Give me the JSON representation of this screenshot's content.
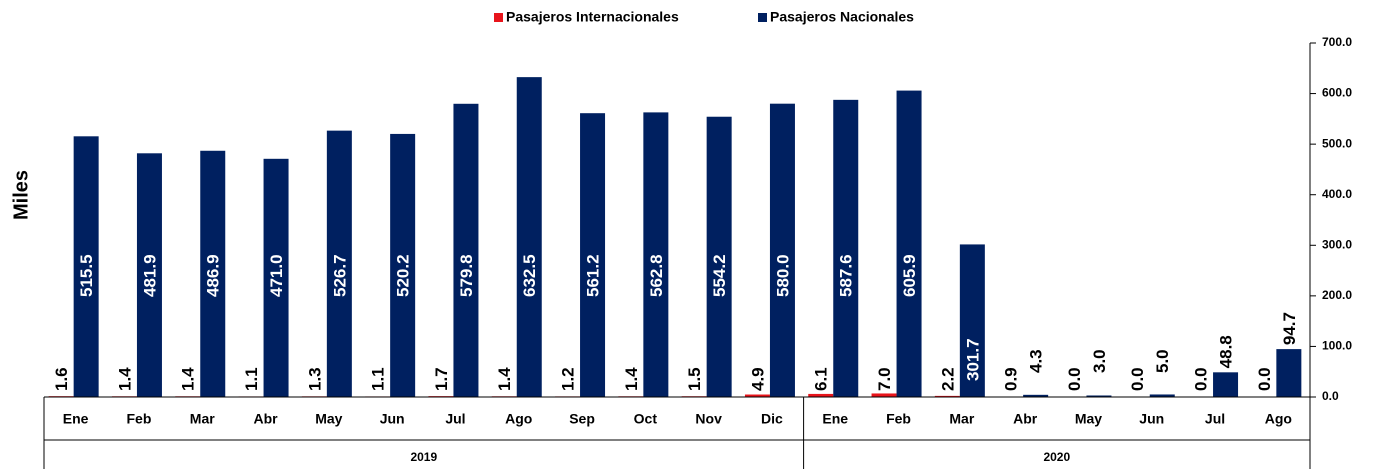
{
  "chart_data": {
    "type": "bar",
    "y_axis_label": "Miles",
    "categories": [
      "Ene",
      "Feb",
      "Mar",
      "Abr",
      "May",
      "Jun",
      "Jul",
      "Ago",
      "Sep",
      "Oct",
      "Nov",
      "Dic",
      "Ene",
      "Feb",
      "Mar",
      "Abr",
      "May",
      "Jun",
      "Jul",
      "Ago"
    ],
    "category_groups": [
      {
        "label": "2019",
        "span": 12
      },
      {
        "label": "2020",
        "span": 8
      }
    ],
    "series": [
      {
        "name": "Pasajeros Internacionales",
        "color": "#e8141b",
        "values": [
          1.6,
          1.4,
          1.4,
          1.1,
          1.3,
          1.1,
          1.7,
          1.4,
          1.2,
          1.4,
          1.5,
          4.9,
          6.1,
          7.0,
          2.2,
          0.9,
          0.0,
          0.0,
          0.0,
          0.0
        ],
        "value_labels": [
          "1.6",
          "1.4",
          "1.4",
          "1.1",
          "1.3",
          "1.1",
          "1.7",
          "1.4",
          "1.2",
          "1.4",
          "1.5",
          "4.9",
          "6.1",
          "7.0",
          "2.2",
          "0.9",
          "0.0",
          "0.0",
          "0.0",
          "0.0"
        ]
      },
      {
        "name": "Pasajeros Nacionales",
        "color": "#002060",
        "values": [
          515.5,
          481.9,
          486.9,
          471.0,
          526.7,
          520.2,
          579.8,
          632.5,
          561.2,
          562.8,
          554.2,
          580.0,
          587.6,
          605.9,
          301.7,
          4.3,
          3.0,
          5.0,
          48.8,
          94.7
        ],
        "value_labels": [
          "515.5",
          "481.9",
          "486.9",
          "471.0",
          "526.7",
          "520.2",
          "579.8",
          "632.5",
          "561.2",
          "562.8",
          "554.2",
          "580.0",
          "587.6",
          "605.9",
          "301.7",
          "4.3",
          "3.0",
          "5.0",
          "48.8",
          "94.7"
        ]
      }
    ],
    "ylim": [
      0,
      700
    ],
    "yticks": [
      {
        "value": 0,
        "label": "0.0"
      },
      {
        "value": 100,
        "label": "100.0"
      },
      {
        "value": 200,
        "label": "200.0"
      },
      {
        "value": 300,
        "label": "300.0"
      },
      {
        "value": 400,
        "label": "400.0"
      },
      {
        "value": 500,
        "label": "500.0"
      },
      {
        "value": 600,
        "label": "600.0"
      },
      {
        "value": 700,
        "label": "700.0"
      }
    ],
    "y_axis_side": "right",
    "legend": "top"
  }
}
